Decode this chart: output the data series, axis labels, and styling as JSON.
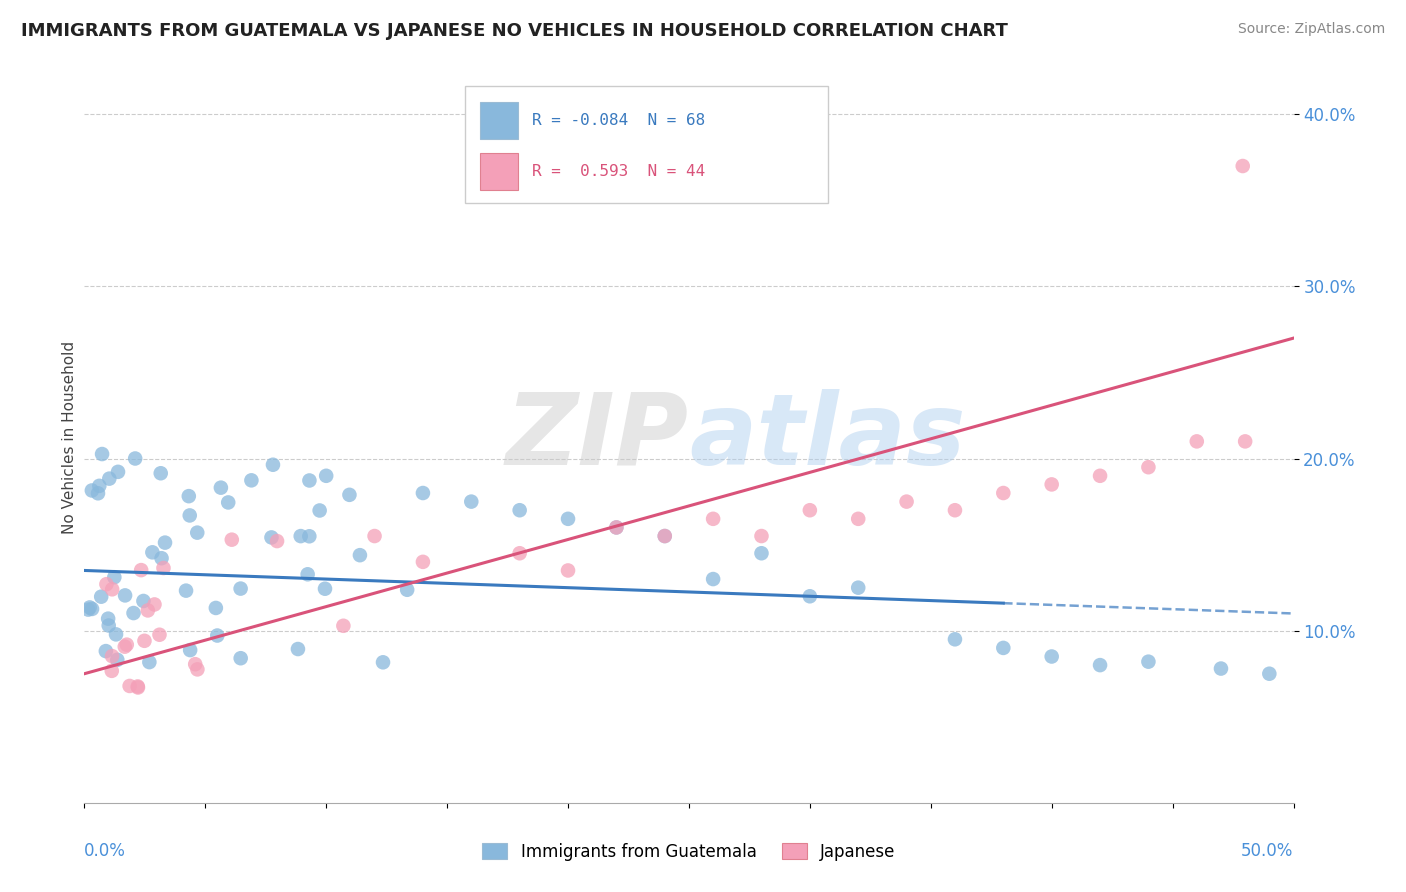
{
  "title": "IMMIGRANTS FROM GUATEMALA VS JAPANESE NO VEHICLES IN HOUSEHOLD CORRELATION CHART",
  "source": "Source: ZipAtlas.com",
  "ylabel": "No Vehicles in Household",
  "xlim": [
    0.0,
    0.5
  ],
  "ylim": [
    0.0,
    0.425
  ],
  "blue_color": "#89b8dc",
  "pink_color": "#f4a0b8",
  "blue_line_color": "#3a7abf",
  "pink_line_color": "#d9537a",
  "blue_r": -0.084,
  "blue_n": 68,
  "pink_r": 0.593,
  "pink_n": 44,
  "watermark_zip": "ZIP",
  "watermark_atlas": "atlas",
  "legend_blue_label": "Immigrants from Guatemala",
  "legend_pink_label": "Japanese",
  "blue_line_x0": 0.0,
  "blue_line_y0": 0.135,
  "blue_line_x1": 0.5,
  "blue_line_y1": 0.11,
  "pink_line_x0": 0.0,
  "pink_line_y0": 0.075,
  "pink_line_x1": 0.5,
  "pink_line_y1": 0.27
}
